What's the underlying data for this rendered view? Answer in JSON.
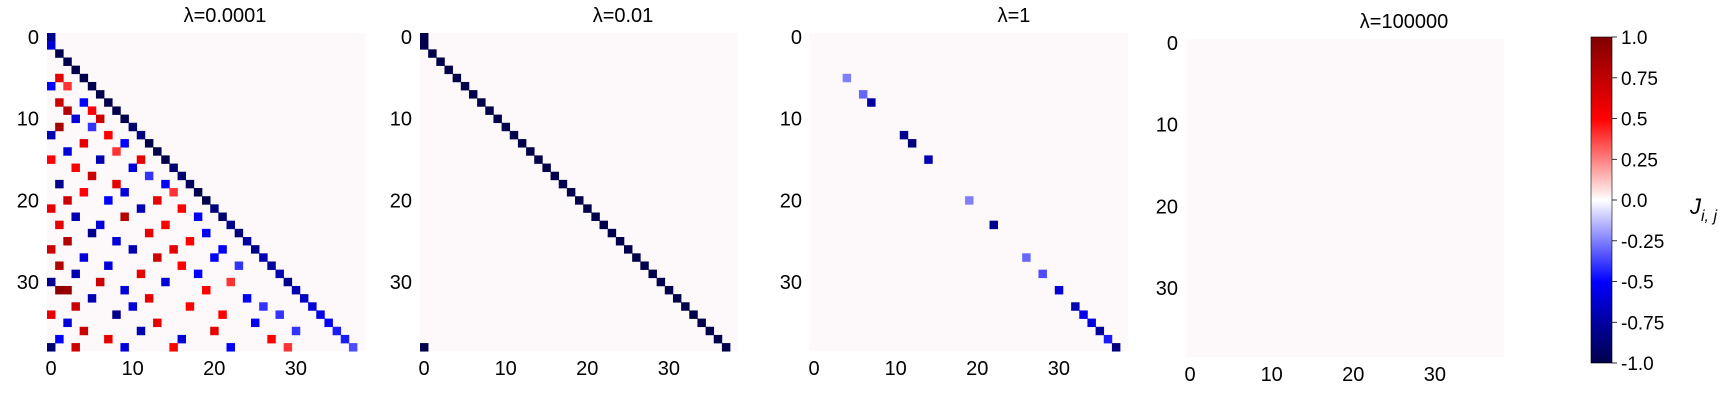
{
  "chart_data": {
    "type": "heatmap",
    "matrix_size": 39,
    "triangle": "lower",
    "panels": [
      {
        "title": "λ=0.0001",
        "xticks": [
          "0",
          "10",
          "20",
          "30"
        ],
        "yticks": [
          "0",
          "10",
          "20",
          "30"
        ],
        "cells": [
          [
            0,
            0,
            -0.8
          ],
          [
            1,
            0,
            -0.6
          ],
          [
            2,
            1,
            -1.0
          ],
          [
            3,
            2,
            -1.0
          ],
          [
            4,
            3,
            -1.0
          ],
          [
            5,
            4,
            -1.0
          ],
          [
            6,
            5,
            -1.0
          ],
          [
            7,
            6,
            -1.0
          ],
          [
            8,
            7,
            -1.0
          ],
          [
            9,
            8,
            -1.0
          ],
          [
            10,
            9,
            -1.0
          ],
          [
            11,
            10,
            -0.9
          ],
          [
            12,
            11,
            -0.85
          ],
          [
            13,
            12,
            -1.0
          ],
          [
            14,
            13,
            -1.0
          ],
          [
            15,
            14,
            -1.0
          ],
          [
            16,
            15,
            -0.9
          ],
          [
            17,
            16,
            -0.9
          ],
          [
            18,
            17,
            -0.95
          ],
          [
            19,
            18,
            -1.0
          ],
          [
            20,
            19,
            -1.0
          ],
          [
            21,
            20,
            -0.85
          ],
          [
            22,
            21,
            -0.9
          ],
          [
            23,
            22,
            -0.8
          ],
          [
            24,
            23,
            -0.85
          ],
          [
            25,
            24,
            -0.75
          ],
          [
            26,
            25,
            -0.8
          ],
          [
            27,
            26,
            -0.7
          ],
          [
            28,
            27,
            -0.75
          ],
          [
            29,
            28,
            -0.7
          ],
          [
            30,
            29,
            -0.8
          ],
          [
            31,
            30,
            -0.7
          ],
          [
            32,
            31,
            -0.65
          ],
          [
            33,
            32,
            -0.6
          ],
          [
            34,
            33,
            -0.55
          ],
          [
            35,
            34,
            -0.5
          ],
          [
            36,
            35,
            -0.45
          ],
          [
            37,
            36,
            -0.45
          ],
          [
            38,
            37,
            -0.35
          ],
          [
            5,
            1,
            0.6
          ],
          [
            6,
            0,
            -0.5
          ],
          [
            6,
            2,
            0.4
          ],
          [
            8,
            1,
            0.7
          ],
          [
            8,
            4,
            -0.5
          ],
          [
            9,
            2,
            0.8
          ],
          [
            9,
            5,
            0.5
          ],
          [
            10,
            3,
            -0.6
          ],
          [
            10,
            6,
            0.7
          ],
          [
            11,
            1,
            0.85
          ],
          [
            11,
            5,
            -0.4
          ],
          [
            12,
            0,
            -0.7
          ],
          [
            12,
            7,
            0.5
          ],
          [
            13,
            4,
            0.6
          ],
          [
            13,
            9,
            -0.5
          ],
          [
            14,
            2,
            -0.6
          ],
          [
            14,
            8,
            0.4
          ],
          [
            15,
            0,
            0.5
          ],
          [
            15,
            6,
            -0.7
          ],
          [
            15,
            11,
            0.6
          ],
          [
            16,
            3,
            0.5
          ],
          [
            16,
            10,
            -0.6
          ],
          [
            17,
            5,
            0.7
          ],
          [
            17,
            12,
            -0.4
          ],
          [
            18,
            1,
            -0.8
          ],
          [
            18,
            8,
            0.6
          ],
          [
            18,
            14,
            -0.5
          ],
          [
            19,
            4,
            0.5
          ],
          [
            19,
            9,
            -0.6
          ],
          [
            19,
            15,
            0.4
          ],
          [
            20,
            2,
            0.7
          ],
          [
            20,
            7,
            -0.5
          ],
          [
            20,
            13,
            0.6
          ],
          [
            21,
            0,
            0.6
          ],
          [
            21,
            11,
            -0.7
          ],
          [
            21,
            16,
            0.5
          ],
          [
            22,
            3,
            -0.7
          ],
          [
            22,
            9,
            0.8
          ],
          [
            22,
            18,
            -0.5
          ],
          [
            23,
            1,
            0.6
          ],
          [
            23,
            6,
            -0.6
          ],
          [
            23,
            14,
            0.5
          ],
          [
            24,
            5,
            -0.8
          ],
          [
            24,
            12,
            0.6
          ],
          [
            24,
            19,
            -0.5
          ],
          [
            25,
            2,
            0.8
          ],
          [
            25,
            8,
            -0.6
          ],
          [
            25,
            17,
            0.5
          ],
          [
            26,
            0,
            0.7
          ],
          [
            26,
            10,
            -0.7
          ],
          [
            26,
            15,
            0.6
          ],
          [
            26,
            21,
            -0.5
          ],
          [
            27,
            4,
            -0.6
          ],
          [
            27,
            13,
            0.7
          ],
          [
            27,
            20,
            -0.5
          ],
          [
            28,
            1,
            0.8
          ],
          [
            28,
            7,
            -0.6
          ],
          [
            28,
            16,
            0.5
          ],
          [
            28,
            23,
            -0.4
          ],
          [
            29,
            3,
            -0.7
          ],
          [
            29,
            11,
            0.6
          ],
          [
            29,
            18,
            -0.5
          ],
          [
            30,
            0,
            -0.8
          ],
          [
            30,
            6,
            0.7
          ],
          [
            30,
            14,
            -0.6
          ],
          [
            30,
            22,
            0.4
          ],
          [
            31,
            1,
            0.95
          ],
          [
            31,
            2,
            0.9
          ],
          [
            31,
            9,
            -0.6
          ],
          [
            31,
            19,
            0.5
          ],
          [
            32,
            5,
            -0.7
          ],
          [
            32,
            12,
            0.6
          ],
          [
            32,
            24,
            -0.5
          ],
          [
            33,
            3,
            0.7
          ],
          [
            33,
            10,
            -0.6
          ],
          [
            33,
            17,
            0.5
          ],
          [
            33,
            26,
            -0.4
          ],
          [
            34,
            0,
            0.6
          ],
          [
            34,
            8,
            -0.8
          ],
          [
            34,
            21,
            0.5
          ],
          [
            34,
            28,
            -0.4
          ],
          [
            35,
            2,
            -0.6
          ],
          [
            35,
            13,
            0.6
          ],
          [
            35,
            25,
            -0.5
          ],
          [
            36,
            4,
            0.7
          ],
          [
            36,
            11,
            -0.7
          ],
          [
            36,
            20,
            0.6
          ],
          [
            36,
            30,
            -0.4
          ],
          [
            37,
            1,
            -0.5
          ],
          [
            37,
            7,
            0.6
          ],
          [
            37,
            16,
            -0.6
          ],
          [
            37,
            27,
            0.5
          ],
          [
            38,
            0,
            -0.9
          ],
          [
            38,
            3,
            0.7
          ],
          [
            38,
            9,
            -0.6
          ],
          [
            38,
            15,
            0.5
          ],
          [
            38,
            22,
            -0.5
          ],
          [
            38,
            29,
            0.4
          ]
        ]
      },
      {
        "title": "λ=0.01",
        "xticks": [
          "0",
          "10",
          "20",
          "30"
        ],
        "yticks": [
          "0",
          "10",
          "20",
          "30"
        ],
        "cells": [
          [
            0,
            0,
            -1.0
          ],
          [
            1,
            0,
            -1.0
          ],
          [
            2,
            1,
            -1.0
          ],
          [
            3,
            2,
            -1.0
          ],
          [
            4,
            3,
            -1.0
          ],
          [
            5,
            4,
            -1.0
          ],
          [
            6,
            5,
            -1.0
          ],
          [
            7,
            6,
            -1.0
          ],
          [
            8,
            7,
            -1.0
          ],
          [
            9,
            8,
            -1.0
          ],
          [
            10,
            9,
            -1.0
          ],
          [
            11,
            10,
            -1.0
          ],
          [
            12,
            11,
            -1.0
          ],
          [
            13,
            12,
            -1.0
          ],
          [
            14,
            13,
            -1.0
          ],
          [
            15,
            14,
            -1.0
          ],
          [
            16,
            15,
            -1.0
          ],
          [
            17,
            16,
            -1.0
          ],
          [
            18,
            17,
            -1.0
          ],
          [
            19,
            18,
            -1.0
          ],
          [
            20,
            19,
            -1.0
          ],
          [
            21,
            20,
            -1.0
          ],
          [
            22,
            21,
            -1.0
          ],
          [
            23,
            22,
            -1.0
          ],
          [
            24,
            23,
            -1.0
          ],
          [
            25,
            24,
            -1.0
          ],
          [
            26,
            25,
            -1.0
          ],
          [
            27,
            26,
            -1.0
          ],
          [
            28,
            27,
            -1.0
          ],
          [
            29,
            28,
            -1.0
          ],
          [
            30,
            29,
            -1.0
          ],
          [
            31,
            30,
            -1.0
          ],
          [
            32,
            31,
            -1.0
          ],
          [
            33,
            32,
            -1.0
          ],
          [
            34,
            33,
            -1.0
          ],
          [
            35,
            34,
            -1.0
          ],
          [
            36,
            35,
            -1.0
          ],
          [
            37,
            36,
            -1.0
          ],
          [
            38,
            37,
            -1.0
          ],
          [
            38,
            0,
            -1.0
          ]
        ]
      },
      {
        "title": "λ=1",
        "xticks": [
          "0",
          "10",
          "20",
          "30"
        ],
        "yticks": [
          "0",
          "10",
          "20",
          "30"
        ],
        "cells": [
          [
            5,
            4,
            -0.25
          ],
          [
            7,
            6,
            -0.3
          ],
          [
            8,
            7,
            -0.75
          ],
          [
            12,
            11,
            -0.8
          ],
          [
            13,
            12,
            -0.85
          ],
          [
            15,
            14,
            -0.7
          ],
          [
            20,
            19,
            -0.25
          ],
          [
            23,
            22,
            -0.8
          ],
          [
            27,
            26,
            -0.3
          ],
          [
            29,
            28,
            -0.35
          ],
          [
            31,
            30,
            -0.6
          ],
          [
            33,
            32,
            -0.7
          ],
          [
            34,
            33,
            -0.55
          ],
          [
            35,
            34,
            -0.6
          ],
          [
            36,
            35,
            -0.75
          ],
          [
            37,
            36,
            -0.45
          ],
          [
            38,
            37,
            -0.85
          ]
        ]
      },
      {
        "title": "λ=100000",
        "xticks": [
          "0",
          "10",
          "20",
          "30"
        ],
        "yticks": [
          "0",
          "10",
          "20",
          "30"
        ],
        "cells": []
      }
    ],
    "colorbar": {
      "label": "J_{i,j}",
      "vmin": -1.0,
      "vmax": 1.0,
      "colormap": "seismic",
      "ticks": [
        "1.0",
        "0.75",
        "0.5",
        "0.25",
        "0.0",
        "-0.25",
        "-0.5",
        "-0.75",
        "-1.0"
      ]
    }
  }
}
